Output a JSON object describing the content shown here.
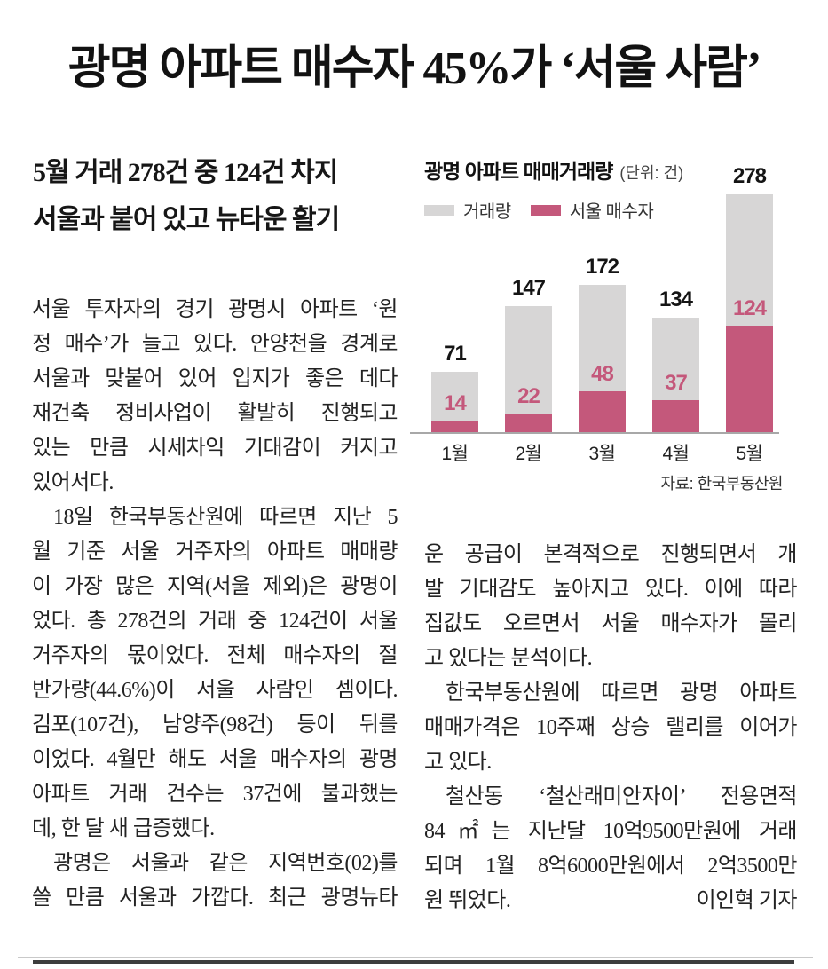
{
  "headline": "광명 아파트 매수자 45%가 ‘서울 사람’",
  "subtitle": {
    "line1": "5월 거래 278건 중 124건 차지",
    "line2": "서울과 붙어 있고 뉴타운 활기"
  },
  "article": {
    "left_lines": [
      "서울 투자자의 경기 광명시 아파트 ‘원",
      "정 매수’가 늘고 있다. 안양천을 경계로",
      "서울과 맞붙어 있어 입지가 좋은 데다",
      "재건축 정비사업이 활발히 진행되고",
      "있는 만큼 시세차익 기대감이 커지고",
      "있어서다.",
      "18일 한국부동산원에 따르면 지난 5",
      "월 기준 서울 거주자의 아파트 매매량",
      "이 가장 많은 지역(서울 제외)은 광명이",
      "었다. 총 278건의 거래 중 124건이 서울",
      "거주자의 몫이었다. 전체 매수자의 절",
      "반가량(44.6%)이 서울 사람인 셈이다.",
      "김포(107건), 남양주(98건) 등이 뒤를",
      "이었다. 4월만 해도 서울 매수자의 광명",
      "아파트 거래 건수는 37건에 불과했는",
      "데, 한 달 새 급증했다.",
      "광명은 서울과 같은 지역번호(02)를",
      "쓸 만큼 서울과 가깝다. 최근 광명뉴타"
    ],
    "right_lines": [
      "운 공급이 본격적으로 진행되면서 개",
      "발 기대감도 높아지고 있다. 이에 따라",
      "집값도 오르면서 서울 매수자가 몰리",
      "고 있다는 분석이다.",
      "한국부동산원에 따르면 광명 아파트",
      "매매가격은 10주째 상승 랠리를 이어가",
      "고 있다.",
      "철산동 ‘철산래미안자이’ 전용면적",
      "84㎡는 지난달 10억9500만원에 거래",
      "되며 1월 8억6000만원에서 2억3500만"
    ],
    "last_line": "원 뛰었다.",
    "byline": "이인혁 기자"
  },
  "chart_data": {
    "type": "bar",
    "title": "광명 아파트 매매거래량",
    "unit_label": "(단위: 건)",
    "categories": [
      "1월",
      "2월",
      "3월",
      "4월",
      "5월"
    ],
    "series": [
      {
        "name": "거래량",
        "color": "#d7d6d6",
        "values": [
          71,
          147,
          172,
          134,
          278
        ]
      },
      {
        "name": "서울 매수자",
        "color": "#c4587b",
        "values": [
          14,
          22,
          48,
          37,
          124
        ]
      }
    ],
    "value_labels": true,
    "grid": false,
    "legend_position": "top-left",
    "ylim": [
      0,
      290
    ],
    "axis_color": "#a8a8a8",
    "total_label_color": "#141414",
    "source": "자료: 한국부동산원"
  }
}
